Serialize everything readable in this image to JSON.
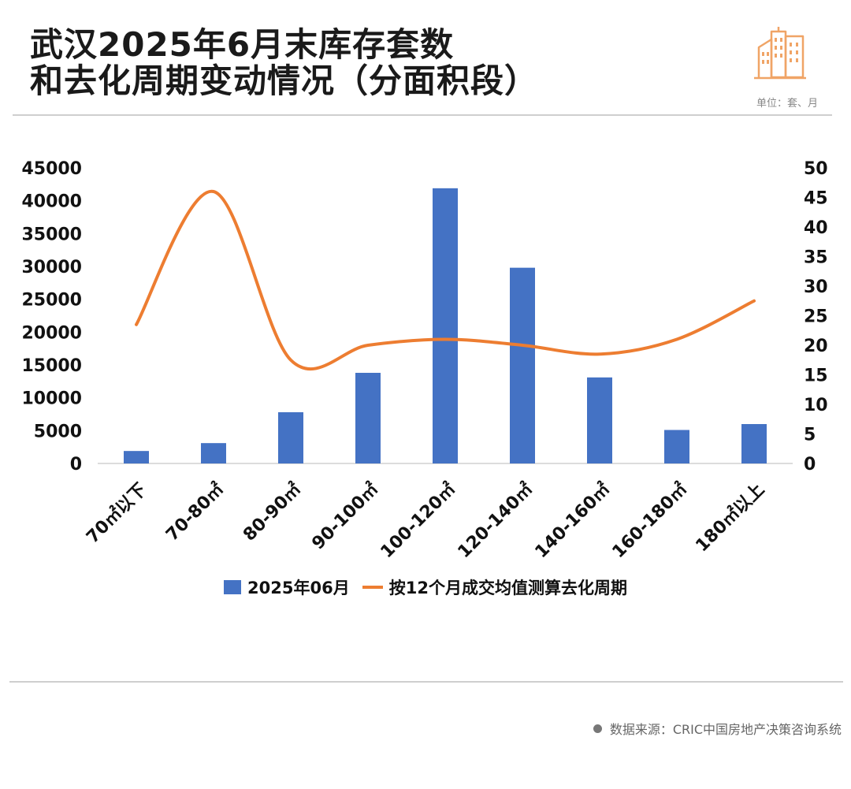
{
  "header": {
    "title_line1": "武汉2025年6月末库存套数",
    "title_line2": "和去化周期变动情况（分面积段）",
    "unit": "单位：套、月"
  },
  "footer": {
    "source": "数据来源：CRIC中国房地产决策咨询系统"
  },
  "colors": {
    "bar": "#4472C4",
    "line": "#ED7D31",
    "logo": "#F0A466"
  },
  "icons": {
    "logo": "city-buildings-icon",
    "source": "bullet-dot-icon"
  },
  "chart_data": {
    "type": "bar",
    "categories": [
      "70㎡以下",
      "70-80㎡",
      "80-90㎡",
      "90-100㎡",
      "100-120㎡",
      "120-140㎡",
      "140-160㎡",
      "160-180㎡",
      "180㎡以上"
    ],
    "series": [
      {
        "name": "2025年06月",
        "type": "bar",
        "axis": "left",
        "values": [
          1900,
          3100,
          7800,
          13800,
          41900,
          29800,
          13100,
          5100,
          6000
        ]
      },
      {
        "name": "按12个月成交均值测算去化周期",
        "type": "line",
        "axis": "right",
        "smooth": true,
        "values": [
          23.5,
          46,
          17.5,
          20,
          21,
          20,
          18.5,
          21,
          27.5
        ]
      }
    ],
    "title": "",
    "xlabel": "",
    "ylabel": "",
    "ylim": [
      0,
      45000
    ],
    "yticks": [
      "0",
      "5000",
      "10000",
      "15000",
      "20000",
      "25000",
      "30000",
      "35000",
      "40000",
      "45000"
    ],
    "y2lim": [
      0,
      50
    ],
    "y2ticks": [
      "0",
      "5",
      "10",
      "15",
      "20",
      "25",
      "30",
      "35",
      "40",
      "45",
      "50"
    ],
    "grid": false,
    "legend": "bottom"
  }
}
